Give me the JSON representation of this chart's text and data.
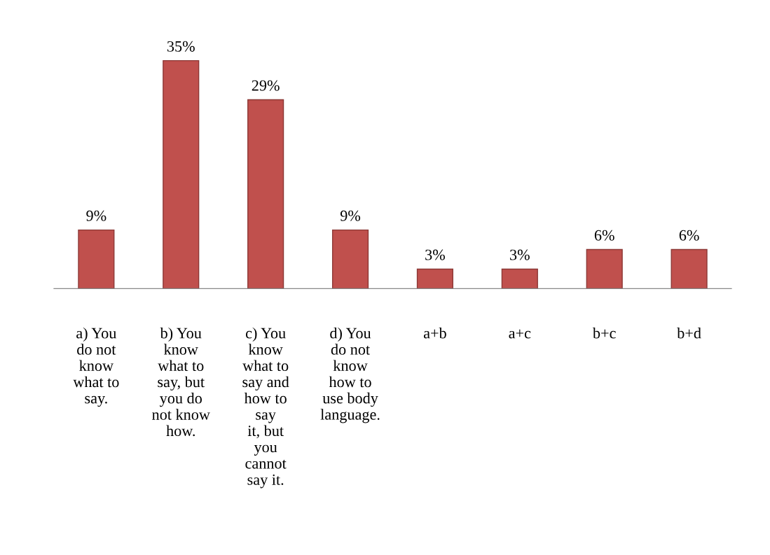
{
  "chart_data": {
    "type": "bar",
    "categories": [
      "a) You\ndo not\nknow\nwhat to\nsay.",
      "b) You\nknow\nwhat to\nsay, but\nyou do\nnot know\nhow.",
      "c) You\nknow\nwhat to\nsay and\nhow to\nsay\nit, but\nyou\ncannot\nsay it.",
      "d) You\ndo not\nknow\nhow to\nuse body\nlanguage.",
      "a+b",
      "a+c",
      "b+c",
      "b+d"
    ],
    "values": [
      9,
      35,
      29,
      9,
      3,
      3,
      6,
      6
    ],
    "value_labels": [
      "9%",
      "35%",
      "29%",
      "9%",
      "3%",
      "3%",
      "6%",
      "6%"
    ],
    "color": "#c0504d"
  }
}
